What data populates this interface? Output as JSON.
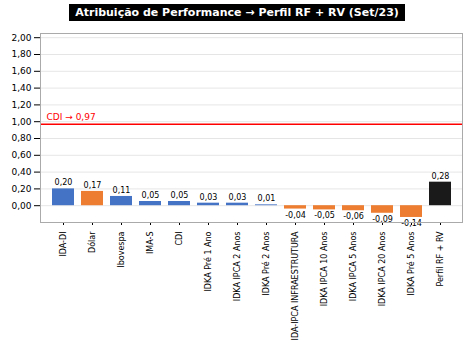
{
  "chart_data": {
    "type": "bar",
    "title": "Atribuição de Performance → Perfil RF + RV (Set/23)",
    "categories": [
      "IDA-DI",
      "Dólar",
      "Ibovespa",
      "IMA-S",
      "CDI",
      "IDKA Pré 1 Ano",
      "IDKA IPCA 2 Anos",
      "IDKA Pré 2 Anos",
      "IDA-IPCA INFRAESTRUTURA",
      "IDKA IPCA 10 Anos",
      "IDKA IPCA 5 Anos",
      "IDKA IPCA 20 Anos",
      "IDKA Pré 5 Anos",
      "Perfil RF + RV"
    ],
    "values": [
      0.2,
      0.17,
      0.11,
      0.05,
      0.05,
      0.03,
      0.03,
      0.01,
      -0.04,
      -0.05,
      -0.06,
      -0.09,
      -0.14,
      0.28
    ],
    "value_labels": [
      "0,20",
      "0,17",
      "0,11",
      "0,05",
      "0,05",
      "0,03",
      "0,03",
      "0,01",
      "-0,04",
      "-0,05",
      "-0,06",
      "-0,09",
      "-0,14",
      "0,28"
    ],
    "data_labels": true,
    "colors": [
      "#4472C4",
      "#ED7D31",
      "#4472C4",
      "#4472C4",
      "#4472C4",
      "#4472C4",
      "#4472C4",
      "#4472C4",
      "#ED7D31",
      "#ED7D31",
      "#ED7D31",
      "#ED7D31",
      "#ED7D31",
      "#1A1A1A"
    ],
    "annotations": [
      {
        "text": "CDI → 0,97",
        "y": 0.97,
        "color": "red"
      }
    ],
    "ylim": [
      -0.2,
      2.05
    ],
    "yticks": [
      {
        "value": 0.0,
        "label": "0,00"
      },
      {
        "value": 0.2,
        "label": "0,20"
      },
      {
        "value": 0.4,
        "label": "0,40"
      },
      {
        "value": 0.6,
        "label": "0,60"
      },
      {
        "value": 0.8,
        "label": "0,80"
      },
      {
        "value": 1.0,
        "label": "1,00"
      },
      {
        "value": 1.2,
        "label": "1,20"
      },
      {
        "value": 1.4,
        "label": "1,40"
      },
      {
        "value": 1.6,
        "label": "1,60"
      },
      {
        "value": 1.8,
        "label": "1,80"
      },
      {
        "value": 2.0,
        "label": "2,00"
      }
    ],
    "grid": true
  }
}
